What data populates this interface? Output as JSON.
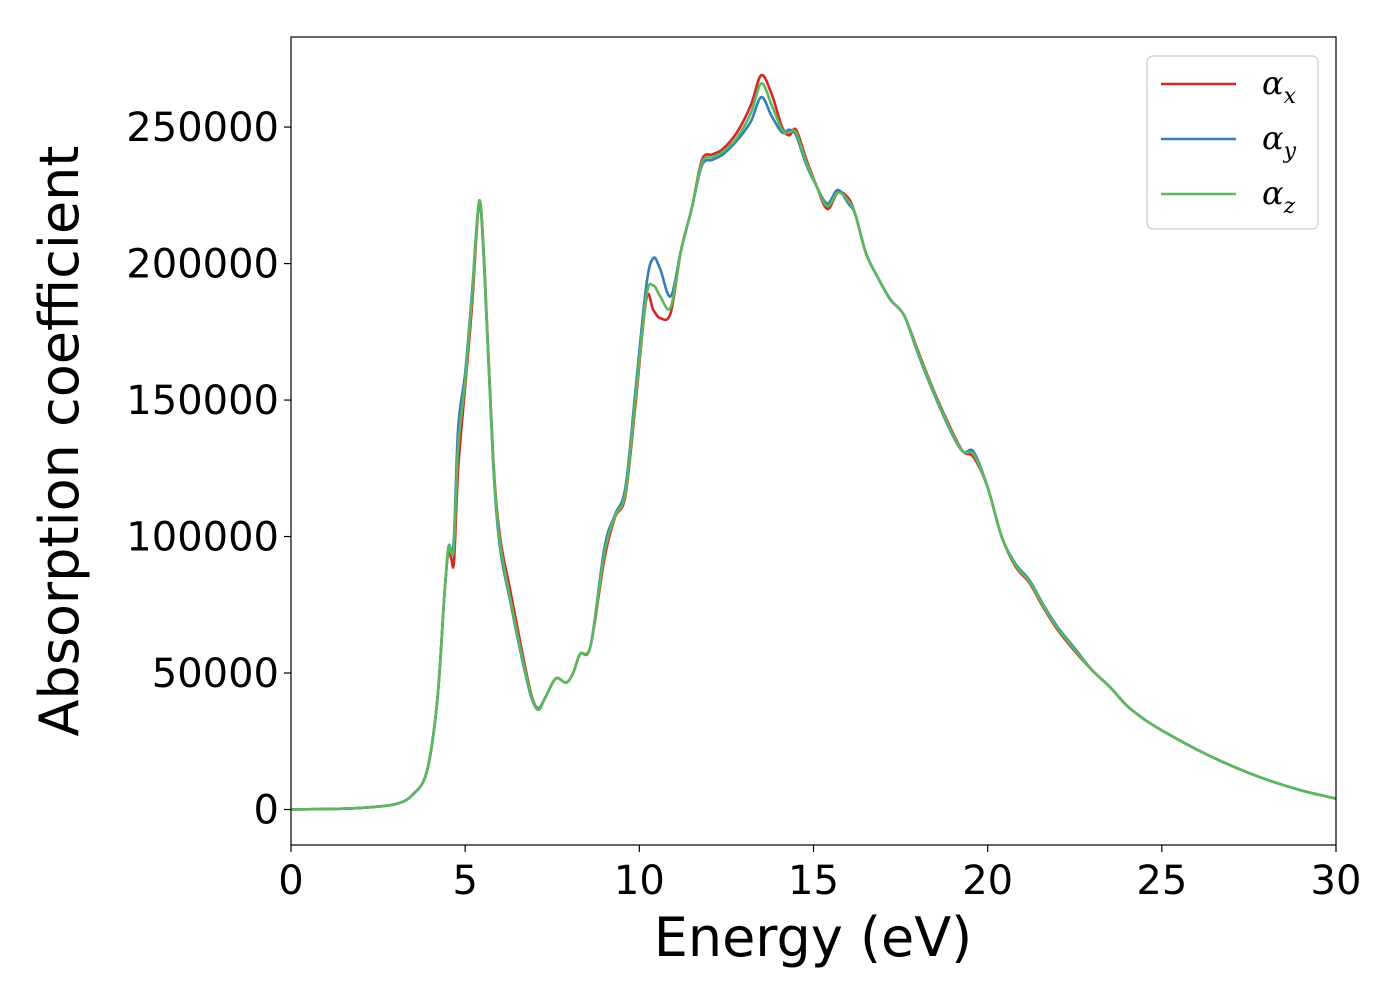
{
  "chart_data": {
    "type": "line",
    "title": "",
    "xlabel": "Energy (eV)",
    "ylabel": "Absorption coefficient",
    "xlim": [
      0,
      30
    ],
    "ylim": [
      -13000,
      283000
    ],
    "xticks": [
      "0",
      "5",
      "10",
      "15",
      "20",
      "25",
      "30"
    ],
    "yticks": [
      "0",
      "50000",
      "100000",
      "150000",
      "200000",
      "250000"
    ],
    "xtick_values": [
      0,
      5,
      10,
      15,
      20,
      25,
      30
    ],
    "ytick_values": [
      0,
      50000,
      100000,
      150000,
      200000,
      250000
    ],
    "grid": false,
    "legend_position": "top-right",
    "series": [
      {
        "name": "α_x",
        "legend_symbol": "α",
        "legend_subscript": "x",
        "color": "#d62728",
        "points": [
          [
            0,
            0
          ],
          [
            1,
            200
          ],
          [
            2,
            600
          ],
          [
            3,
            2000
          ],
          [
            3.5,
            5500
          ],
          [
            3.9,
            14000
          ],
          [
            4.2,
            40000
          ],
          [
            4.4,
            78000
          ],
          [
            4.52,
            95000
          ],
          [
            4.6,
            92000
          ],
          [
            4.68,
            91000
          ],
          [
            4.8,
            125000
          ],
          [
            5.0,
            155000
          ],
          [
            5.2,
            185000
          ],
          [
            5.4,
            222000
          ],
          [
            5.55,
            200000
          ],
          [
            5.8,
            130000
          ],
          [
            6.0,
            100000
          ],
          [
            6.3,
            80000
          ],
          [
            6.6,
            60000
          ],
          [
            6.9,
            42000
          ],
          [
            7.1,
            37000
          ],
          [
            7.3,
            41000
          ],
          [
            7.6,
            48000
          ],
          [
            7.9,
            46500
          ],
          [
            8.1,
            50000
          ],
          [
            8.3,
            57000
          ],
          [
            8.6,
            60000
          ],
          [
            9.0,
            92000
          ],
          [
            9.3,
            107000
          ],
          [
            9.6,
            115000
          ],
          [
            9.9,
            150000
          ],
          [
            10.2,
            187000
          ],
          [
            10.4,
            183000
          ],
          [
            10.6,
            180000
          ],
          [
            10.9,
            182000
          ],
          [
            11.2,
            205000
          ],
          [
            11.5,
            220000
          ],
          [
            11.8,
            238000
          ],
          [
            12.1,
            240000
          ],
          [
            12.4,
            242000
          ],
          [
            12.8,
            248000
          ],
          [
            13.2,
            258000
          ],
          [
            13.5,
            269000
          ],
          [
            13.8,
            262000
          ],
          [
            14.1,
            250000
          ],
          [
            14.3,
            247000
          ],
          [
            14.5,
            249000
          ],
          [
            14.8,
            238000
          ],
          [
            15.1,
            228000
          ],
          [
            15.4,
            220000
          ],
          [
            15.7,
            226000
          ],
          [
            16.0,
            224000
          ],
          [
            16.2,
            218000
          ],
          [
            16.5,
            204000
          ],
          [
            16.8,
            196000
          ],
          [
            17.2,
            187000
          ],
          [
            17.6,
            181000
          ],
          [
            18.0,
            168000
          ],
          [
            18.5,
            152000
          ],
          [
            19.0,
            138000
          ],
          [
            19.3,
            131000
          ],
          [
            19.6,
            129000
          ],
          [
            20.0,
            118000
          ],
          [
            20.4,
            100000
          ],
          [
            20.8,
            89000
          ],
          [
            21.2,
            83000
          ],
          [
            21.6,
            74000
          ],
          [
            22.0,
            66000
          ],
          [
            22.5,
            58000
          ],
          [
            23.0,
            51000
          ],
          [
            23.5,
            45000
          ],
          [
            24.0,
            38000
          ],
          [
            24.5,
            33000
          ],
          [
            25.0,
            29000
          ],
          [
            26.0,
            22000
          ],
          [
            27.0,
            16000
          ],
          [
            28.0,
            11000
          ],
          [
            29.0,
            7000
          ],
          [
            30.0,
            4000
          ]
        ]
      },
      {
        "name": "α_y",
        "legend_symbol": "α",
        "legend_subscript": "y",
        "color": "#377eb8",
        "points": [
          [
            0,
            0
          ],
          [
            1,
            200
          ],
          [
            2,
            600
          ],
          [
            3,
            2000
          ],
          [
            3.5,
            5500
          ],
          [
            3.9,
            14000
          ],
          [
            4.2,
            40000
          ],
          [
            4.4,
            78000
          ],
          [
            4.52,
            96000
          ],
          [
            4.6,
            95000
          ],
          [
            4.68,
            100000
          ],
          [
            4.8,
            140000
          ],
          [
            5.0,
            160000
          ],
          [
            5.2,
            190000
          ],
          [
            5.4,
            222000
          ],
          [
            5.55,
            198000
          ],
          [
            5.8,
            128000
          ],
          [
            6.0,
            96000
          ],
          [
            6.3,
            76000
          ],
          [
            6.6,
            57000
          ],
          [
            6.9,
            41000
          ],
          [
            7.1,
            37000
          ],
          [
            7.3,
            41000
          ],
          [
            7.6,
            48000
          ],
          [
            7.9,
            46500
          ],
          [
            8.1,
            50000
          ],
          [
            8.3,
            57000
          ],
          [
            8.6,
            60000
          ],
          [
            9.0,
            96000
          ],
          [
            9.3,
            108000
          ],
          [
            9.6,
            118000
          ],
          [
            9.9,
            155000
          ],
          [
            10.2,
            192000
          ],
          [
            10.4,
            202000
          ],
          [
            10.6,
            198000
          ],
          [
            10.9,
            188000
          ],
          [
            11.2,
            205000
          ],
          [
            11.5,
            220000
          ],
          [
            11.8,
            236000
          ],
          [
            12.1,
            238000
          ],
          [
            12.4,
            240000
          ],
          [
            12.8,
            245000
          ],
          [
            13.2,
            252000
          ],
          [
            13.5,
            261000
          ],
          [
            13.8,
            254000
          ],
          [
            14.1,
            248000
          ],
          [
            14.3,
            249000
          ],
          [
            14.5,
            247000
          ],
          [
            14.8,
            236000
          ],
          [
            15.1,
            228000
          ],
          [
            15.4,
            222000
          ],
          [
            15.7,
            227000
          ],
          [
            16.0,
            222000
          ],
          [
            16.2,
            218000
          ],
          [
            16.5,
            204000
          ],
          [
            16.8,
            196000
          ],
          [
            17.2,
            187000
          ],
          [
            17.6,
            181000
          ],
          [
            18.0,
            167000
          ],
          [
            18.5,
            151000
          ],
          [
            19.0,
            137000
          ],
          [
            19.3,
            131000
          ],
          [
            19.6,
            131000
          ],
          [
            20.0,
            118000
          ],
          [
            20.4,
            100000
          ],
          [
            20.8,
            90000
          ],
          [
            21.2,
            84000
          ],
          [
            21.6,
            75000
          ],
          [
            22.0,
            67000
          ],
          [
            22.5,
            59000
          ],
          [
            23.0,
            51000
          ],
          [
            23.5,
            45000
          ],
          [
            24.0,
            38000
          ],
          [
            24.5,
            33000
          ],
          [
            25.0,
            29000
          ],
          [
            26.0,
            22000
          ],
          [
            27.0,
            16000
          ],
          [
            28.0,
            11000
          ],
          [
            29.0,
            7000
          ],
          [
            30.0,
            4000
          ]
        ]
      },
      {
        "name": "α_z",
        "legend_symbol": "α",
        "legend_subscript": "z",
        "color": "#5cb85c",
        "points": [
          [
            0,
            0
          ],
          [
            1,
            200
          ],
          [
            2,
            600
          ],
          [
            3,
            2000
          ],
          [
            3.5,
            5500
          ],
          [
            3.9,
            14000
          ],
          [
            4.2,
            40000
          ],
          [
            4.4,
            78000
          ],
          [
            4.52,
            96000
          ],
          [
            4.6,
            94000
          ],
          [
            4.68,
            97000
          ],
          [
            4.8,
            133000
          ],
          [
            5.0,
            157000
          ],
          [
            5.2,
            188000
          ],
          [
            5.4,
            223000
          ],
          [
            5.55,
            199000
          ],
          [
            5.8,
            129000
          ],
          [
            6.0,
            98000
          ],
          [
            6.3,
            77000
          ],
          [
            6.6,
            58000
          ],
          [
            6.9,
            41500
          ],
          [
            7.1,
            36500
          ],
          [
            7.3,
            41000
          ],
          [
            7.6,
            48000
          ],
          [
            7.9,
            46500
          ],
          [
            8.1,
            50000
          ],
          [
            8.3,
            57000
          ],
          [
            8.6,
            60000
          ],
          [
            9.0,
            94000
          ],
          [
            9.3,
            107500
          ],
          [
            9.6,
            116000
          ],
          [
            9.9,
            152000
          ],
          [
            10.2,
            188000
          ],
          [
            10.4,
            192000
          ],
          [
            10.6,
            188000
          ],
          [
            10.9,
            184000
          ],
          [
            11.2,
            205000
          ],
          [
            11.5,
            220000
          ],
          [
            11.8,
            237000
          ],
          [
            12.1,
            239000
          ],
          [
            12.4,
            241000
          ],
          [
            12.8,
            246000
          ],
          [
            13.2,
            255000
          ],
          [
            13.5,
            266000
          ],
          [
            13.8,
            258000
          ],
          [
            14.1,
            249000
          ],
          [
            14.3,
            248000
          ],
          [
            14.5,
            248000
          ],
          [
            14.8,
            237000
          ],
          [
            15.1,
            228000
          ],
          [
            15.4,
            221000
          ],
          [
            15.7,
            226000
          ],
          [
            16.0,
            223000
          ],
          [
            16.2,
            218000
          ],
          [
            16.5,
            204000
          ],
          [
            16.8,
            196000
          ],
          [
            17.2,
            187000
          ],
          [
            17.6,
            181000
          ],
          [
            18.0,
            167500
          ],
          [
            18.5,
            151500
          ],
          [
            19.0,
            137500
          ],
          [
            19.3,
            131000
          ],
          [
            19.6,
            130000
          ],
          [
            20.0,
            118000
          ],
          [
            20.4,
            100000
          ],
          [
            20.8,
            89500
          ],
          [
            21.2,
            83500
          ],
          [
            21.6,
            74500
          ],
          [
            22.0,
            66500
          ],
          [
            22.5,
            58500
          ],
          [
            23.0,
            51000
          ],
          [
            23.5,
            45000
          ],
          [
            24.0,
            38000
          ],
          [
            24.5,
            33000
          ],
          [
            25.0,
            29000
          ],
          [
            26.0,
            22000
          ],
          [
            27.0,
            16000
          ],
          [
            28.0,
            11000
          ],
          [
            29.0,
            7000
          ],
          [
            30.0,
            4000
          ]
        ]
      }
    ]
  }
}
